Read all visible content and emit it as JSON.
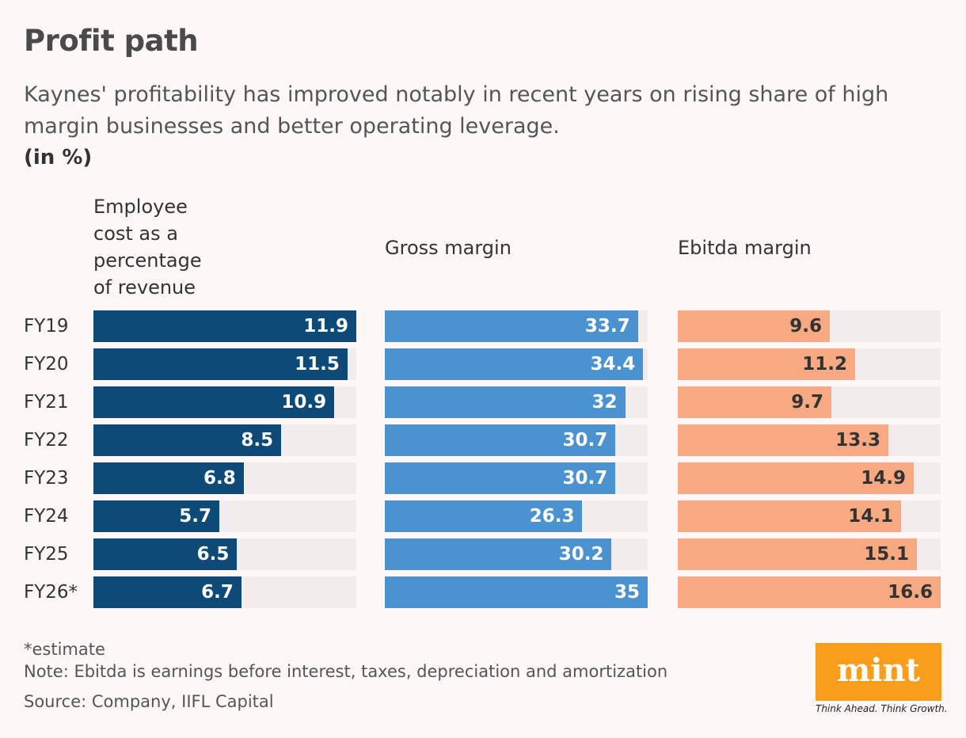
{
  "header": {
    "title": "Profit path",
    "subtitle": "Kaynes' profitability has improved notably in recent years on rising share of high margin businesses and better operating leverage.",
    "unit": "(in %)"
  },
  "chart_data": {
    "type": "bar",
    "orientation": "horizontal",
    "categories": [
      "FY19",
      "FY20",
      "FY21",
      "FY22",
      "FY23",
      "FY24",
      "FY25",
      "FY26*"
    ],
    "panels": [
      {
        "title": "Employee cost as a percentage of revenue",
        "color": "#0d4a78",
        "label_color": "#ffffff",
        "max": 11.9,
        "values": [
          11.9,
          11.5,
          10.9,
          8.5,
          6.8,
          5.7,
          6.5,
          6.7
        ]
      },
      {
        "title": "Gross margin",
        "color": "#4b93d0",
        "label_color": "#ffffff",
        "max": 35,
        "values": [
          33.7,
          34.4,
          32,
          30.7,
          30.7,
          26.3,
          30.2,
          35
        ]
      },
      {
        "title": "Ebitda margin",
        "color": "#f7a981",
        "label_color": "#333333",
        "max": 16.6,
        "values": [
          9.6,
          11.2,
          9.7,
          13.3,
          14.9,
          14.1,
          15.1,
          16.6
        ]
      }
    ]
  },
  "footer": {
    "estimate": "*estimate",
    "note": "Note: Ebitda is earnings before interest, taxes, depreciation and amortization",
    "source": "Source: Company, IIFL Capital"
  },
  "logo": {
    "text": "mint",
    "tagline": "Think Ahead. Think Growth.",
    "color": "#f99d1c"
  }
}
